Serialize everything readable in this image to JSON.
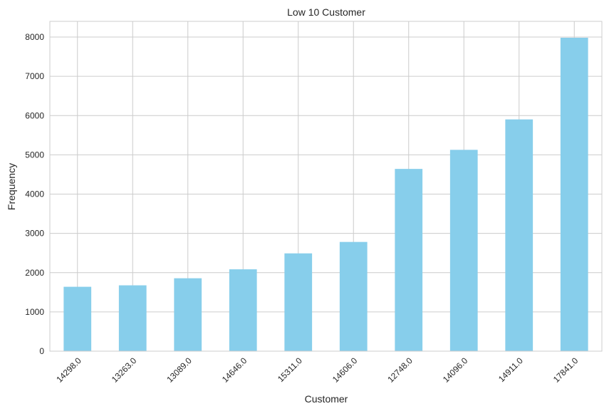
{
  "chart_data": {
    "type": "bar",
    "title": "Low 10 Customer",
    "xlabel": "Customer",
    "ylabel": "Frequency",
    "categories": [
      "14298.0",
      "13263.0",
      "13089.0",
      "14646.0",
      "15311.0",
      "14606.0",
      "12748.0",
      "14096.0",
      "14911.0",
      "17841.0"
    ],
    "values": [
      1640,
      1677,
      1857,
      2085,
      2491,
      2782,
      4642,
      5128,
      5903,
      7983
    ],
    "ylim": [
      0,
      8400
    ],
    "yticks": [
      0,
      1000,
      2000,
      3000,
      4000,
      5000,
      6000,
      7000,
      8000
    ],
    "grid": true,
    "bar_color": "#87ceeb",
    "grid_color": "#cccccc",
    "background": "#ffffff"
  }
}
